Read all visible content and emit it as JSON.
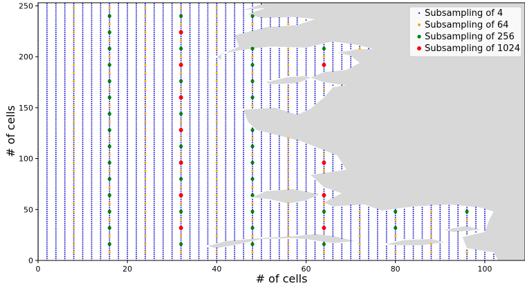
{
  "chart_data": {
    "type": "scatter",
    "xlabel": "# of cells",
    "ylabel": "# of cells",
    "xlim": [
      0,
      109
    ],
    "ylim": [
      0,
      253
    ],
    "xticks": [
      0,
      20,
      40,
      60,
      80,
      100
    ],
    "yticks": [
      0,
      50,
      100,
      150,
      200,
      250
    ],
    "grid": false,
    "legend_position": "top-right",
    "land_color": "#d8d8d8",
    "series": [
      {
        "name": "Subsampling of 4",
        "color": "#2222cc",
        "stride": 4
      },
      {
        "name": "Subsampling of 64",
        "color": "#ffa500",
        "stride": 64
      },
      {
        "name": "Subsampling of 256",
        "color": "#008000",
        "stride": 256
      },
      {
        "name": "Subsampling of 1024",
        "color": "#ff0000",
        "stride": 1024
      }
    ]
  }
}
